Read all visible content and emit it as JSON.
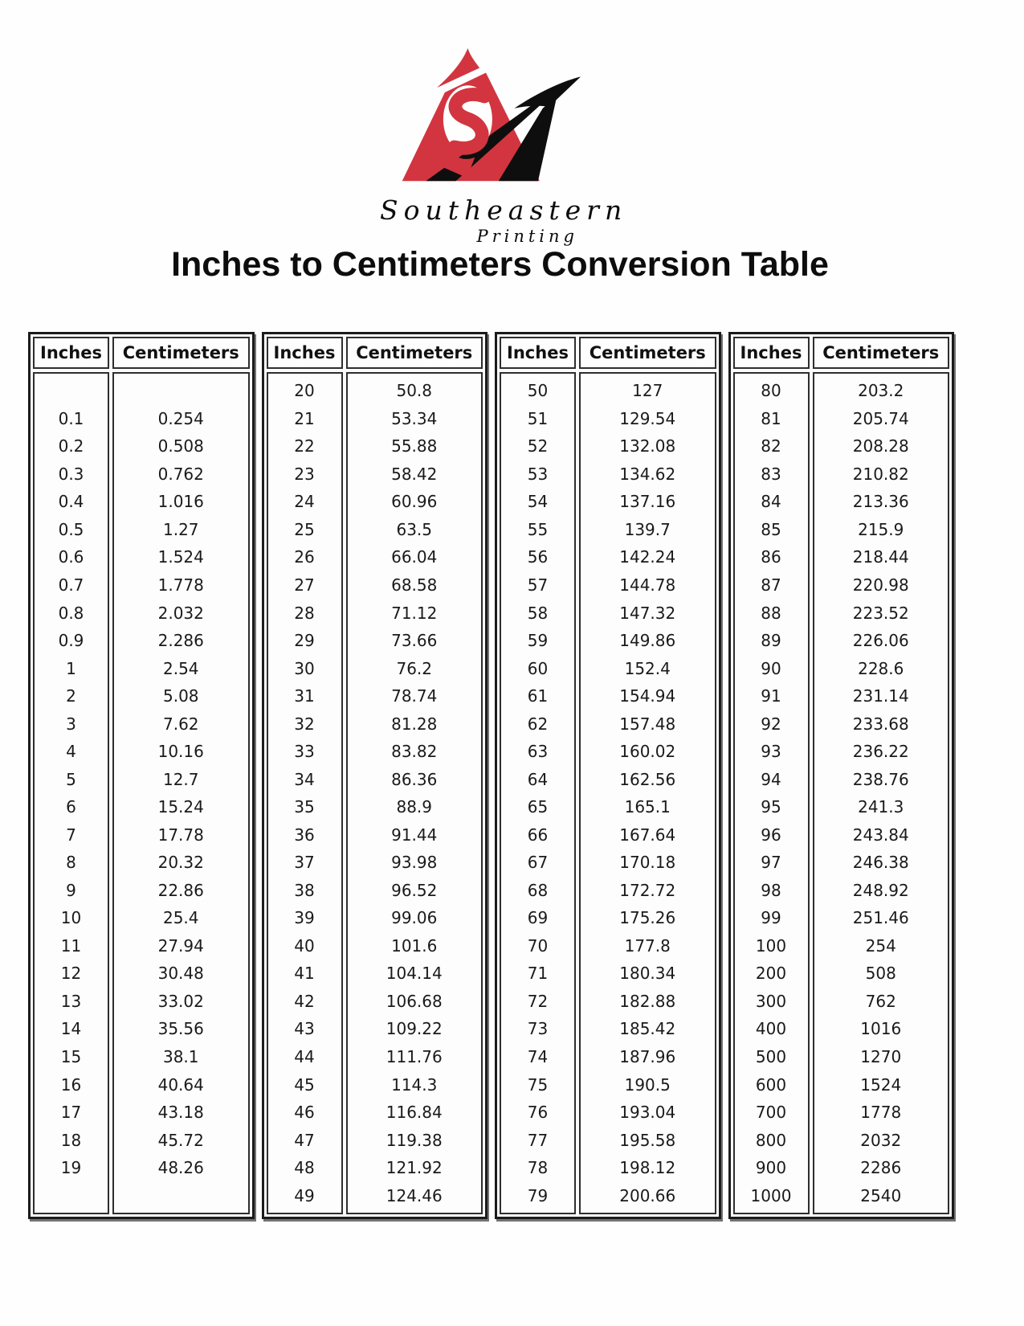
{
  "logo": {
    "brand_top": "Southeastern",
    "brand_bottom": "Printing",
    "red": "#d2353f",
    "black": "#0e0e0e"
  },
  "title": "Inches to Centimeters Conversion Table",
  "table_headers": [
    "Inches",
    "Centimeters"
  ],
  "tables": [
    {
      "inches": [
        "",
        "0.1",
        "0.2",
        "0.3",
        "0.4",
        "0.5",
        "0.6",
        "0.7",
        "0.8",
        "0.9",
        "1",
        "2",
        "3",
        "4",
        "5",
        "6",
        "7",
        "8",
        "9",
        "10",
        "11",
        "12",
        "13",
        "14",
        "15",
        "16",
        "17",
        "18",
        "19",
        ""
      ],
      "centimeters": [
        "",
        "0.254",
        "0.508",
        "0.762",
        "1.016",
        "1.27",
        "1.524",
        "1.778",
        "2.032",
        "2.286",
        "2.54",
        "5.08",
        "7.62",
        "10.16",
        "12.7",
        "15.24",
        "17.78",
        "20.32",
        "22.86",
        "25.4",
        "27.94",
        "30.48",
        "33.02",
        "35.56",
        "38.1",
        "40.64",
        "43.18",
        "45.72",
        "48.26",
        ""
      ]
    },
    {
      "inches": [
        "20",
        "21",
        "22",
        "23",
        "24",
        "25",
        "26",
        "27",
        "28",
        "29",
        "30",
        "31",
        "32",
        "33",
        "34",
        "35",
        "36",
        "37",
        "38",
        "39",
        "40",
        "41",
        "42",
        "43",
        "44",
        "45",
        "46",
        "47",
        "48",
        "49"
      ],
      "centimeters": [
        "50.8",
        "53.34",
        "55.88",
        "58.42",
        "60.96",
        "63.5",
        "66.04",
        "68.58",
        "71.12",
        "73.66",
        "76.2",
        "78.74",
        "81.28",
        "83.82",
        "86.36",
        "88.9",
        "91.44",
        "93.98",
        "96.52",
        "99.06",
        "101.6",
        "104.14",
        "106.68",
        "109.22",
        "111.76",
        "114.3",
        "116.84",
        "119.38",
        "121.92",
        "124.46"
      ]
    },
    {
      "inches": [
        "50",
        "51",
        "52",
        "53",
        "54",
        "55",
        "56",
        "57",
        "58",
        "59",
        "60",
        "61",
        "62",
        "63",
        "64",
        "65",
        "66",
        "67",
        "68",
        "69",
        "70",
        "71",
        "72",
        "73",
        "74",
        "75",
        "76",
        "77",
        "78",
        "79"
      ],
      "centimeters": [
        "127",
        "129.54",
        "132.08",
        "134.62",
        "137.16",
        "139.7",
        "142.24",
        "144.78",
        "147.32",
        "149.86",
        "152.4",
        "154.94",
        "157.48",
        "160.02",
        "162.56",
        "165.1",
        "167.64",
        "170.18",
        "172.72",
        "175.26",
        "177.8",
        "180.34",
        "182.88",
        "185.42",
        "187.96",
        "190.5",
        "193.04",
        "195.58",
        "198.12",
        "200.66"
      ]
    },
    {
      "inches": [
        "80",
        "81",
        "82",
        "83",
        "84",
        "85",
        "86",
        "87",
        "88",
        "89",
        "90",
        "91",
        "92",
        "93",
        "94",
        "95",
        "96",
        "97",
        "98",
        "99",
        "100",
        "200",
        "300",
        "400",
        "500",
        "600",
        "700",
        "800",
        "900",
        "1000"
      ],
      "centimeters": [
        "203.2",
        "205.74",
        "208.28",
        "210.82",
        "213.36",
        "215.9",
        "218.44",
        "220.98",
        "223.52",
        "226.06",
        "228.6",
        "231.14",
        "233.68",
        "236.22",
        "238.76",
        "241.3",
        "243.84",
        "246.38",
        "248.92",
        "251.46",
        "254",
        "508",
        "762",
        "1016",
        "1270",
        "1524",
        "1778",
        "2032",
        "2286",
        "2540"
      ]
    }
  ]
}
